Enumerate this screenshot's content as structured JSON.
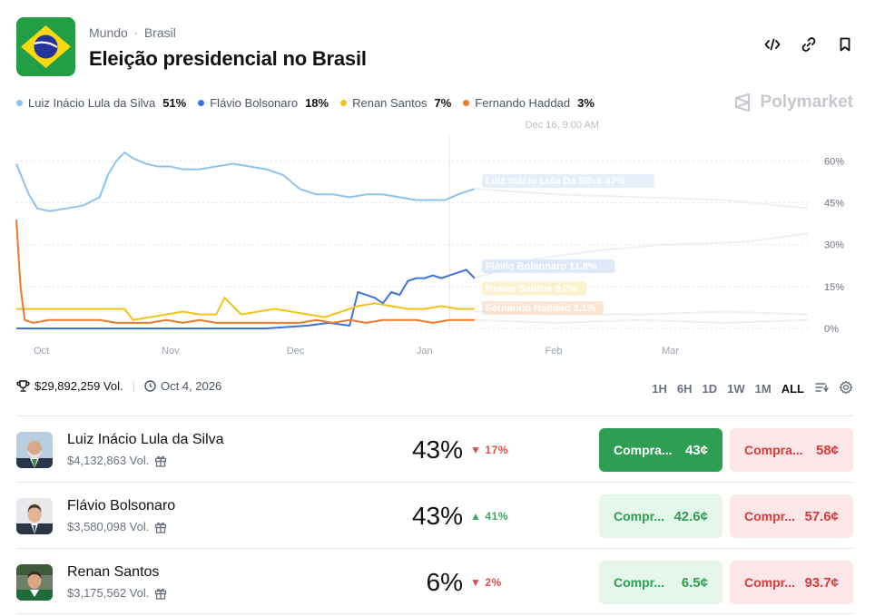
{
  "header": {
    "breadcrumb": [
      "Mundo",
      "Brasil"
    ],
    "title": "Eleição presidencial no Brasil"
  },
  "legend": [
    {
      "name": "Luiz Inácio Lula da Silva",
      "pct": "51%",
      "color": "#8fc3ec"
    },
    {
      "name": "Flávio Bolsonaro",
      "pct": "18%",
      "color": "#3f73d9"
    },
    {
      "name": "Renan Santos",
      "pct": "7%",
      "color": "#f2c318"
    },
    {
      "name": "Fernando Haddad",
      "pct": "3%",
      "color": "#ec7a2a"
    }
  ],
  "brand": "Polymarket",
  "chart_data": {
    "type": "line",
    "hover_label": "Dec 16, 9:00 AM",
    "x_ticks": [
      "Oct",
      "Nov",
      "Dec",
      "Jan",
      "Feb",
      "Mar"
    ],
    "y_ticks": [
      "60%",
      "45%",
      "30%",
      "15%",
      "0%"
    ],
    "ylim": [
      0,
      65
    ],
    "x_range_days": [
      0,
      190
    ],
    "hover_day": 104,
    "series": [
      {
        "name": "Luiz Inácio Lula da Silva",
        "color": "#8fc3ec",
        "label": "Luiz Inácio Lula Da Silva 47%",
        "x": [
          0,
          3,
          5,
          8,
          12,
          16,
          20,
          22,
          24,
          26,
          28,
          31,
          34,
          37,
          40,
          44,
          48,
          52,
          56,
          60,
          64,
          68,
          72,
          76,
          80,
          84,
          88,
          92,
          96,
          100,
          103,
          106,
          108,
          110
        ],
        "y": [
          59,
          48,
          43,
          42,
          43,
          44,
          47,
          55,
          60,
          63,
          61,
          59,
          58,
          58,
          57,
          57,
          58,
          59,
          58,
          57,
          55,
          50,
          48,
          48,
          47,
          48,
          48,
          47,
          46,
          46,
          46,
          48,
          49,
          50
        ]
      },
      {
        "name": "Flávio Bolsonaro",
        "color": "#3f73d9",
        "label": "Flávio Bolsonaro 11.8%",
        "x": [
          0,
          10,
          20,
          30,
          40,
          50,
          55,
          60,
          70,
          75,
          80,
          82,
          84,
          86,
          88,
          90,
          92,
          94,
          96,
          98,
          100,
          102,
          104,
          106,
          108,
          110
        ],
        "y": [
          0,
          0,
          0,
          0,
          0,
          0,
          0,
          0,
          1,
          2,
          1,
          13,
          12,
          11,
          9,
          13,
          12,
          17,
          18,
          18,
          19,
          18,
          19,
          20,
          21,
          18
        ]
      },
      {
        "name": "Renan Santos",
        "color": "#f2c318",
        "label": "Renan Santos 9.2%",
        "x": [
          0,
          4,
          8,
          12,
          16,
          20,
          26,
          28,
          32,
          36,
          40,
          44,
          48,
          50,
          54,
          58,
          62,
          66,
          70,
          74,
          78,
          82,
          86,
          90,
          94,
          98,
          102,
          106,
          110
        ],
        "y": [
          7,
          7,
          7,
          7,
          7,
          7,
          7,
          3,
          4,
          5,
          6,
          5,
          5,
          11,
          5,
          6,
          7,
          6,
          5,
          4,
          6,
          8,
          9,
          8,
          7,
          7,
          8,
          7,
          7
        ]
      },
      {
        "name": "Fernando Haddad",
        "color": "#ec7a2a",
        "label": "Fernando Haddad 3.1%",
        "x": [
          0,
          1,
          2,
          4,
          8,
          12,
          16,
          20,
          24,
          28,
          32,
          36,
          40,
          44,
          48,
          52,
          56,
          60,
          64,
          68,
          72,
          76,
          80,
          84,
          88,
          92,
          96,
          100,
          104,
          108,
          110
        ],
        "y": [
          39,
          15,
          3,
          2,
          3,
          3,
          3,
          3,
          2,
          2,
          2,
          3,
          2,
          3,
          2,
          2,
          2,
          2,
          2,
          2,
          3,
          2,
          3,
          2,
          3,
          3,
          3,
          2,
          3,
          3,
          3
        ]
      }
    ]
  },
  "stats": {
    "volume": "$29,892,259 Vol.",
    "end_date": "Oct 4, 2026"
  },
  "ranges": [
    "1H",
    "6H",
    "1D",
    "1W",
    "1M",
    "ALL"
  ],
  "active_range": "ALL",
  "outcomes": [
    {
      "name": "Luiz Inácio Lula da Silva",
      "volume": "$4,132,863 Vol.",
      "prob": "43%",
      "change": "17%",
      "direction": "down",
      "yes_label": "Compra...",
      "yes_price": "43¢",
      "no_label": "Compra...",
      "no_price": "58¢"
    },
    {
      "name": "Flávio Bolsonaro",
      "volume": "$3,580,098 Vol.",
      "prob": "43%",
      "change": "41%",
      "direction": "up",
      "yes_label": "Compr...",
      "yes_price": "42.6¢",
      "no_label": "Compr...",
      "no_price": "57.6¢"
    },
    {
      "name": "Renan Santos",
      "volume": "$3,175,562 Vol.",
      "prob": "6%",
      "change": "2%",
      "direction": "down",
      "yes_label": "Compr...",
      "yes_price": "6.5¢",
      "no_label": "Compr...",
      "no_price": "93.7¢"
    }
  ]
}
